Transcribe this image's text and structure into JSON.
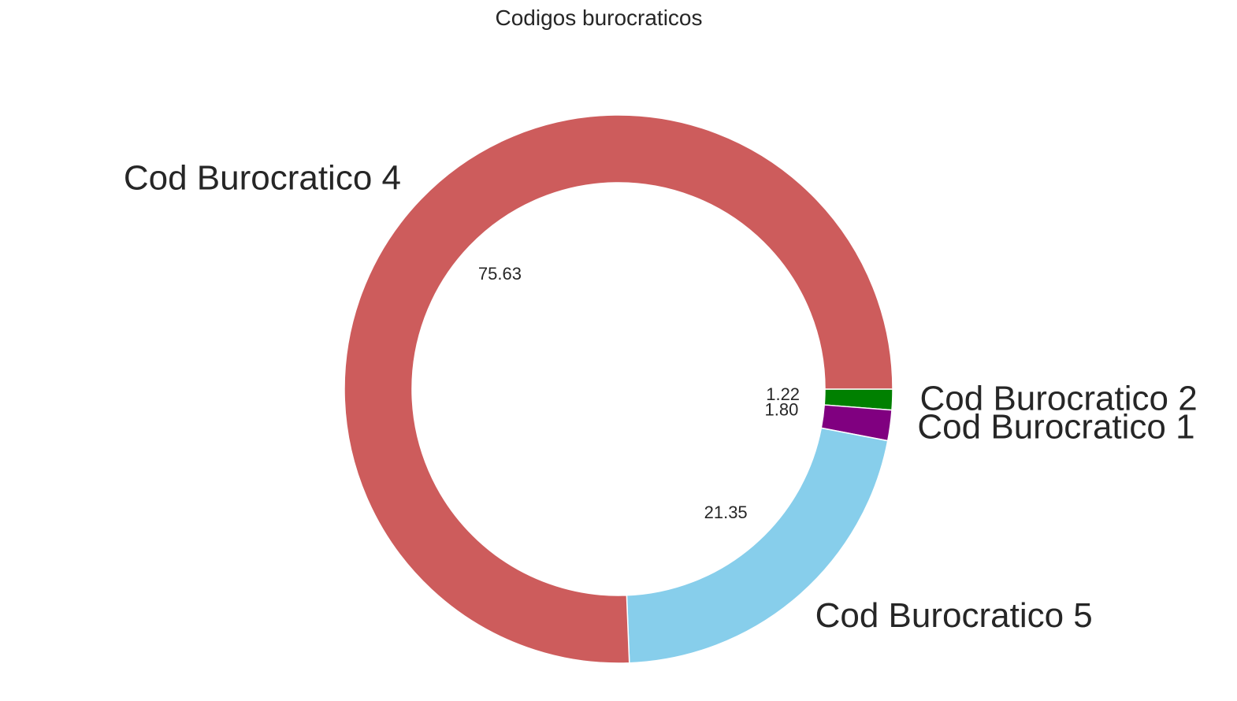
{
  "chart_data": {
    "type": "pie",
    "title": "Codigos burocraticos",
    "donut": true,
    "start_angle_deg": 0,
    "direction": "clockwise",
    "slices": [
      {
        "label": "Cod Burocratico 2",
        "value": 1.22,
        "value_label": "1.22",
        "color": "#008000"
      },
      {
        "label": "Cod Burocratico 1",
        "value": 1.8,
        "value_label": "1.80",
        "color": "#800080"
      },
      {
        "label": "Cod Burocratico 5",
        "value": 21.35,
        "value_label": "21.35",
        "color": "#87ceeb"
      },
      {
        "label": "Cod Burocratico 4",
        "value": 75.63,
        "value_label": "75.63",
        "color": "#cd5c5c"
      }
    ]
  }
}
